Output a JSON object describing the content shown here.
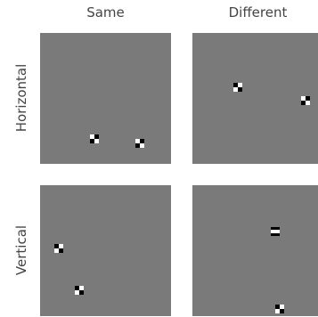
{
  "columns": [
    {
      "label": "Same"
    },
    {
      "label": "Different"
    }
  ],
  "rows": [
    {
      "label": "Horizontal"
    },
    {
      "label": "Vertical"
    }
  ],
  "colors": {
    "panel_background": "#7a7a7a",
    "stimulus_dark": "#000000",
    "stimulus_light": "#ffffff",
    "stimulus_mid": "#7a7a7a"
  }
}
